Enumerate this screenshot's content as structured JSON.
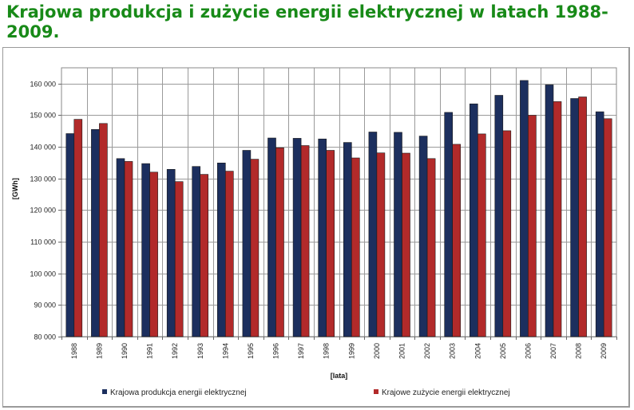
{
  "page": {
    "title": "Krajowa produkcja i zużycie energii elektrycznej w latach 1988-2009."
  },
  "colors": {
    "title": "#188a18",
    "series_production": "#1c2f5e",
    "series_consumption": "#b22a2a",
    "plot_background": "#ffffff",
    "gridline": "#9a9a9a"
  },
  "chart_data": {
    "type": "bar",
    "title": "",
    "xlabel": "[lata]",
    "ylabel": "[GWh]",
    "ylim": [
      80000,
      165000
    ],
    "yticks": [
      80000,
      90000,
      100000,
      110000,
      120000,
      130000,
      140000,
      150000,
      160000
    ],
    "ytick_labels": [
      "80 000",
      "90 000",
      "100 000",
      "110 000",
      "120 000",
      "130 000",
      "140 000",
      "150 000",
      "160 000"
    ],
    "grid": true,
    "legend_position": "bottom",
    "categories": [
      "1988",
      "1989",
      "1990",
      "1991",
      "1992",
      "1993",
      "1994",
      "1995",
      "1996",
      "1997",
      "1998",
      "1999",
      "2000",
      "2001",
      "2002",
      "2003",
      "2004",
      "2005",
      "2006",
      "2007",
      "2008",
      "2009"
    ],
    "series": [
      {
        "name": "Krajowa produkcja energii elektrycznej",
        "color": "#1c2f5e",
        "values": [
          144200,
          145500,
          136300,
          134700,
          132900,
          133800,
          134900,
          138900,
          142800,
          142700,
          142500,
          141400,
          144700,
          144600,
          143400,
          150900,
          153600,
          156300,
          161000,
          159600,
          155300,
          151100
        ]
      },
      {
        "name": "Krajowe zużycie energii elektrycznej",
        "color": "#b22a2a",
        "values": [
          148700,
          147400,
          135400,
          132000,
          129000,
          131300,
          132300,
          136100,
          139700,
          140400,
          138900,
          136500,
          138100,
          138000,
          136300,
          140800,
          144100,
          145100,
          150000,
          154300,
          155800,
          148900
        ]
      }
    ]
  }
}
